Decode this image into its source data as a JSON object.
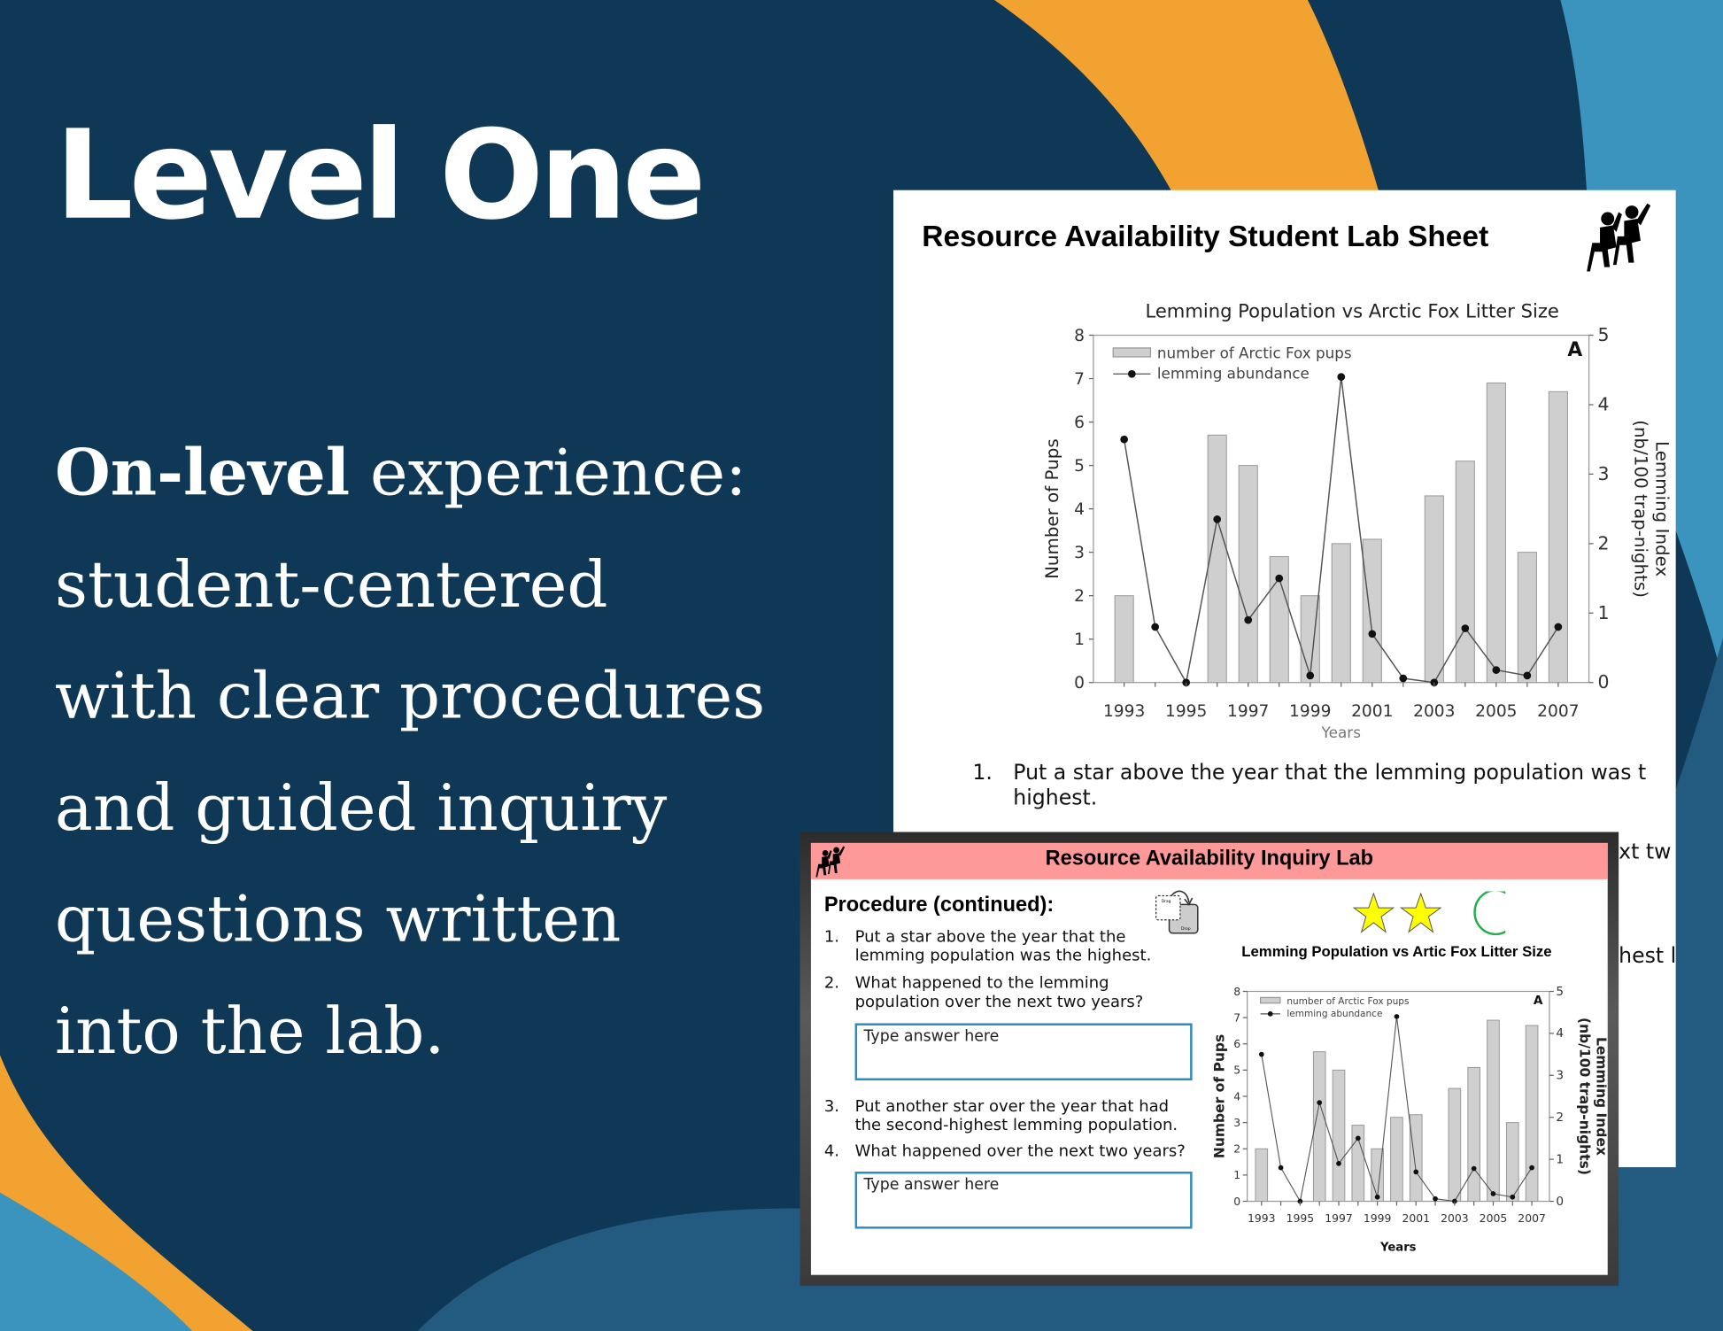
{
  "colors": {
    "navy": "#0e3856",
    "orange": "#f2a230",
    "light_blue": "#3a94bd",
    "mid_blue": "#235a80",
    "header_pink": "#fe9999",
    "answer_border": "#2e8bc0",
    "star": "#ffff00",
    "circle": "#22b04b",
    "bar": "#cfcfcf"
  },
  "slide": {
    "title": "Level One",
    "body_bold": "On-level",
    "body_lines": [
      " experience:",
      "student-centered",
      "with clear procedures",
      "and guided inquiry",
      "questions written",
      "into the lab."
    ]
  },
  "lab_sheet": {
    "title": "Resource Availability Student Lab Sheet",
    "icon": "students-raising-hands-icon",
    "question_1_number": "1.",
    "question_1_line1": "Put a star above the year that the lemming population was t",
    "question_1_line2": "highest.",
    "partial_1": "xt tw",
    "partial_2": "hest l"
  },
  "inquiry_lab": {
    "title": "Resource Availability Inquiry Lab",
    "icon": "students-raising-hands-icon",
    "procedure_heading": "Procedure (continued):",
    "drag_drop_icon": "drag-drop-icon",
    "drag_label": "Drag",
    "drop_label": "Drop",
    "stars_filled": 2,
    "stars_total": 3,
    "questions": [
      {
        "num": "1.",
        "lines": [
          "Put a star above the year that the",
          "lemming population was the highest."
        ]
      },
      {
        "num": "2.",
        "lines": [
          "What happened to the lemming",
          "population over the next two years?"
        ]
      },
      {
        "num": "3.",
        "lines": [
          "Put another star over the year that had",
          "the second-highest lemming population."
        ]
      },
      {
        "num": "4.",
        "lines": [
          "What happened over the next two years?"
        ]
      }
    ],
    "answer_placeholder_1": "Type answer here",
    "answer_placeholder_2": "Type answer here"
  },
  "chart_data": [
    {
      "type": "bar",
      "title": "Lemming Population vs Arctic Fox Litter Size",
      "panel_letter": "A",
      "x": [
        1993,
        1994,
        1995,
        1996,
        1997,
        1998,
        1999,
        2000,
        2001,
        2002,
        2003,
        2004,
        2005,
        2006,
        2007
      ],
      "x_tick_labels": [
        "1993",
        "1995",
        "1997",
        "1999",
        "2001",
        "2003",
        "2005",
        "2007"
      ],
      "xlabel": "Years",
      "ylabel": "Number of Pups",
      "y2label_line1": "Lemming Index",
      "y2label_line2": "(nb/100 trap-nights)",
      "ylim": [
        0,
        8
      ],
      "y2lim": [
        0,
        5
      ],
      "y_ticks": [
        "0",
        "1",
        "2",
        "3",
        "4",
        "5",
        "6",
        "7",
        "8"
      ],
      "y2_ticks": [
        "0",
        "1",
        "2",
        "3",
        "4",
        "5"
      ],
      "legend_position": "top-left",
      "series": [
        {
          "name": "number of Arctic Fox pups",
          "type": "bar",
          "axis": "left",
          "values": [
            2.0,
            0,
            0,
            5.7,
            5.0,
            2.9,
            2.0,
            3.2,
            3.3,
            0,
            4.3,
            5.1,
            6.9,
            3.0,
            6.7
          ]
        },
        {
          "name": "lemming abundance",
          "type": "line",
          "axis": "right",
          "values": [
            3.5,
            0.8,
            0,
            2.35,
            0.9,
            1.5,
            0.1,
            4.4,
            0.7,
            0.06,
            0,
            0.78,
            0.18,
            0.1,
            0.8
          ]
        }
      ]
    },
    {
      "type": "bar",
      "title": "Lemming Population vs Artic Fox Litter Size",
      "panel_letter": "A",
      "x": [
        1993,
        1994,
        1995,
        1996,
        1997,
        1998,
        1999,
        2000,
        2001,
        2002,
        2003,
        2004,
        2005,
        2006,
        2007
      ],
      "x_tick_labels": [
        "1993",
        "1995",
        "1997",
        "1999",
        "2001",
        "2003",
        "2005",
        "2007"
      ],
      "xlabel": "Years",
      "ylabel": "Number of Pups",
      "y2label_line1": "Lemming Index",
      "y2label_line2": "(nb/100 trap-nights)",
      "ylim": [
        0,
        8
      ],
      "y2lim": [
        0,
        5
      ],
      "y_ticks": [
        "0",
        "1",
        "2",
        "3",
        "4",
        "5",
        "6",
        "7",
        "8"
      ],
      "y2_ticks": [
        "0",
        "1",
        "2",
        "3",
        "4",
        "5"
      ],
      "legend_position": "top-left",
      "series": [
        {
          "name": "number of Arctic Fox pups",
          "type": "bar",
          "axis": "left",
          "values": [
            2.0,
            0,
            0,
            5.7,
            5.0,
            2.9,
            2.0,
            3.2,
            3.3,
            0,
            4.3,
            5.1,
            6.9,
            3.0,
            6.7
          ]
        },
        {
          "name": "lemming abundance",
          "type": "line",
          "axis": "right",
          "values": [
            3.5,
            0.8,
            0,
            2.35,
            0.9,
            1.5,
            0.1,
            4.4,
            0.7,
            0.06,
            0,
            0.78,
            0.18,
            0.1,
            0.8
          ]
        }
      ]
    }
  ]
}
